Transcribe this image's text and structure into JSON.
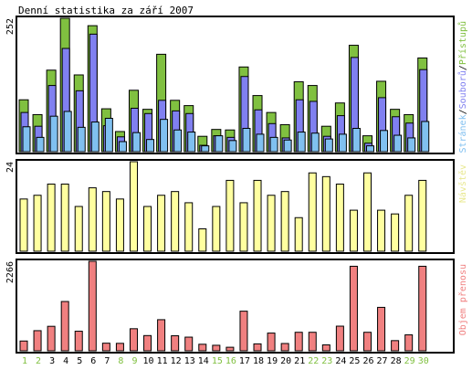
{
  "title": "Denní statistika za září 2007",
  "colors": {
    "background": "#ffffff",
    "frame": "#000000",
    "pristupu": "#80c040",
    "souboru": "#8080f0",
    "stranek": "#80c0f0",
    "navstev": "#ffffa0",
    "navstev_label": "#e8e890",
    "prenos": "#f08080",
    "weekday_label": "#000000",
    "weekend_label": "#80c040"
  },
  "chart_data": [
    {
      "type": "bar",
      "panel": "top",
      "ymax_label": "252",
      "ylim": [
        0,
        252
      ],
      "legend": [
        {
          "text": "Stránek",
          "color_key": "stranek"
        },
        {
          "text": "/",
          "color_key": "frame"
        },
        {
          "text": "Souborů",
          "color_key": "souboru"
        },
        {
          "text": "/",
          "color_key": "frame"
        },
        {
          "text": "Přístupů",
          "color_key": "pristupu"
        }
      ],
      "categories": [
        "1",
        "2",
        "3",
        "4",
        "5",
        "6",
        "7",
        "8",
        "9",
        "10",
        "11",
        "12",
        "13",
        "14",
        "15",
        "16",
        "17",
        "18",
        "19",
        "20",
        "21",
        "22",
        "23",
        "24",
        "25",
        "26",
        "27",
        "28",
        "29",
        "30"
      ],
      "weekend": [
        1,
        2,
        8,
        9,
        15,
        16,
        22,
        23,
        29,
        30
      ],
      "series": [
        {
          "name": "Přístupů",
          "color_key": "pristupu",
          "values": [
            98,
            70,
            154,
            252,
            145,
            238,
            81,
            38,
            116,
            80,
            184,
            97,
            87,
            29,
            42,
            41,
            160,
            106,
            74,
            51,
            132,
            125,
            48,
            92,
            201,
            30,
            133,
            80,
            70,
            177
          ]
        },
        {
          "name": "Souborů",
          "color_key": "souboru",
          "values": [
            74,
            48,
            125,
            195,
            115,
            222,
            49,
            28,
            82,
            72,
            97,
            77,
            72,
            12,
            30,
            27,
            142,
            79,
            53,
            26,
            98,
            95,
            29,
            68,
            178,
            16,
            102,
            66,
            54,
            155
          ]
        },
        {
          "name": "Stránek",
          "color_key": "stranek",
          "values": [
            47,
            27,
            67,
            76,
            46,
            56,
            63,
            19,
            36,
            23,
            61,
            41,
            37,
            11,
            30,
            21,
            44,
            33,
            27,
            22,
            37,
            35,
            24,
            33,
            44,
            11,
            40,
            31,
            26,
            57
          ]
        }
      ]
    },
    {
      "type": "bar",
      "panel": "middle",
      "ymax_label": "24",
      "ylim": [
        0,
        24
      ],
      "legend": [
        {
          "text": "Návštěv",
          "color_key": "navstev_label"
        }
      ],
      "categories": [
        "1",
        "2",
        "3",
        "4",
        "5",
        "6",
        "7",
        "8",
        "9",
        "10",
        "11",
        "12",
        "13",
        "14",
        "15",
        "16",
        "17",
        "18",
        "19",
        "20",
        "21",
        "22",
        "23",
        "24",
        "25",
        "26",
        "27",
        "28",
        "29",
        "30"
      ],
      "series": [
        {
          "name": "Návštěv",
          "color_key": "navstev",
          "values": [
            14,
            15,
            18,
            18,
            12,
            17,
            16,
            14,
            24,
            12,
            15,
            16,
            13,
            6,
            12,
            19,
            13,
            19,
            15,
            16,
            9,
            21,
            20,
            18,
            11,
            21,
            11,
            10,
            15,
            19
          ]
        }
      ]
    },
    {
      "type": "bar",
      "panel": "bottom",
      "ymax_label": "2266",
      "ylim": [
        0,
        2266
      ],
      "legend": [
        {
          "text": "Objem přenosu",
          "color_key": "prenos"
        }
      ],
      "categories": [
        "1",
        "2",
        "3",
        "4",
        "5",
        "6",
        "7",
        "8",
        "9",
        "10",
        "11",
        "12",
        "13",
        "14",
        "15",
        "16",
        "17",
        "18",
        "19",
        "20",
        "21",
        "22",
        "23",
        "24",
        "25",
        "26",
        "27",
        "28",
        "29",
        "30"
      ],
      "series": [
        {
          "name": "Objem přenosu",
          "color_key": "prenos",
          "values": [
            248,
            510,
            620,
            1248,
            496,
            2266,
            193,
            189,
            559,
            386,
            788,
            381,
            346,
            166,
            140,
            90,
            1003,
            176,
            449,
            185,
            469,
            469,
            150,
            624,
            2140,
            469,
            1100,
            258,
            404,
            2140
          ]
        }
      ]
    }
  ]
}
